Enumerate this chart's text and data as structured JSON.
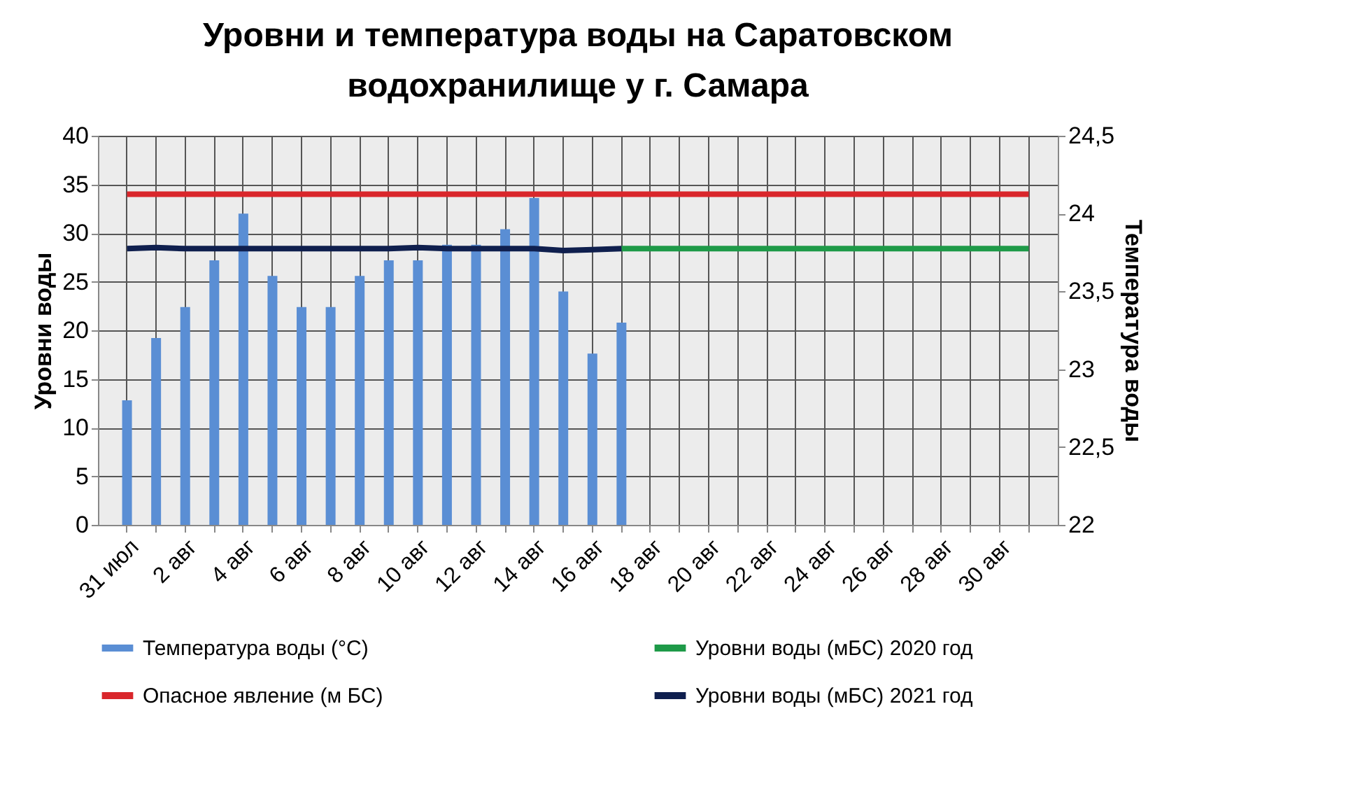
{
  "chart_data": {
    "type": "bar",
    "title": "Уровни и температура  воды на Саратовском водохранилище у  г. Самара",
    "ylabel": "Уровни воды",
    "y2label": "Температура воды",
    "categories": [
      "31 июл",
      null,
      "2 авг",
      null,
      "4 авг",
      null,
      "6 авг",
      null,
      "8 авг",
      null,
      "10 авг",
      null,
      "12 авг",
      null,
      "14 авг",
      null,
      "16 авг",
      null,
      "18 авг",
      null,
      "20 авг",
      null,
      "22 авг",
      null,
      "24 авг",
      null,
      "26 авг",
      null,
      "28 авг",
      null,
      "30 авг",
      null
    ],
    "series": [
      {
        "name": "Температура воды (°C)",
        "axis": "y2",
        "color": "#5a8ed4",
        "values": [
          22.8,
          23.2,
          23.4,
          23.7,
          24.0,
          23.6,
          23.4,
          23.4,
          23.6,
          23.7,
          23.7,
          23.8,
          23.8,
          23.9,
          24.1,
          23.5,
          23.1,
          23.3,
          null,
          null,
          null,
          null,
          null,
          null,
          null,
          null,
          null,
          null,
          null,
          null,
          null,
          null
        ]
      },
      {
        "name": "Уровни воды (мБС) 2020 год",
        "type": "line",
        "color": "#1e9a48",
        "values": [
          null,
          null,
          null,
          null,
          null,
          null,
          null,
          null,
          null,
          null,
          null,
          null,
          null,
          null,
          null,
          null,
          null,
          28.4,
          28.4,
          28.4,
          28.4,
          28.4,
          28.4,
          28.4,
          28.4,
          28.4,
          28.4,
          28.4,
          28.4,
          28.4,
          28.4,
          28.4
        ]
      },
      {
        "name": "Опасное явление    (м БС)",
        "type": "line",
        "color": "#d9262b",
        "values": [
          34,
          34,
          34,
          34,
          34,
          34,
          34,
          34,
          34,
          34,
          34,
          34,
          34,
          34,
          34,
          34,
          34,
          34,
          34,
          34,
          34,
          34,
          34,
          34,
          34,
          34,
          34,
          34,
          34,
          34,
          34,
          34
        ]
      },
      {
        "name": "Уровни воды (мБС) 2021 год",
        "type": "line",
        "color": "#0f1f4e",
        "values": [
          28.4,
          28.5,
          28.4,
          28.4,
          28.4,
          28.4,
          28.4,
          28.4,
          28.4,
          28.4,
          28.5,
          28.4,
          28.4,
          28.4,
          28.4,
          28.2,
          28.3,
          28.4,
          null,
          null,
          null,
          null,
          null,
          null,
          null,
          null,
          null,
          null,
          null,
          null,
          null,
          null
        ]
      }
    ],
    "ylim": [
      0,
      40
    ],
    "yticks": [
      0,
      5,
      10,
      15,
      20,
      25,
      30,
      35,
      40
    ],
    "y2lim": [
      22,
      24.5
    ],
    "y2ticks": [
      22,
      {
        "value": 22.5,
        "label": "22,5"
      },
      23,
      {
        "value": 23.5,
        "label": "23,5"
      },
      24,
      {
        "value": 24.5,
        "label": "24,5"
      }
    ],
    "grid": true,
    "legend": "bottom"
  }
}
